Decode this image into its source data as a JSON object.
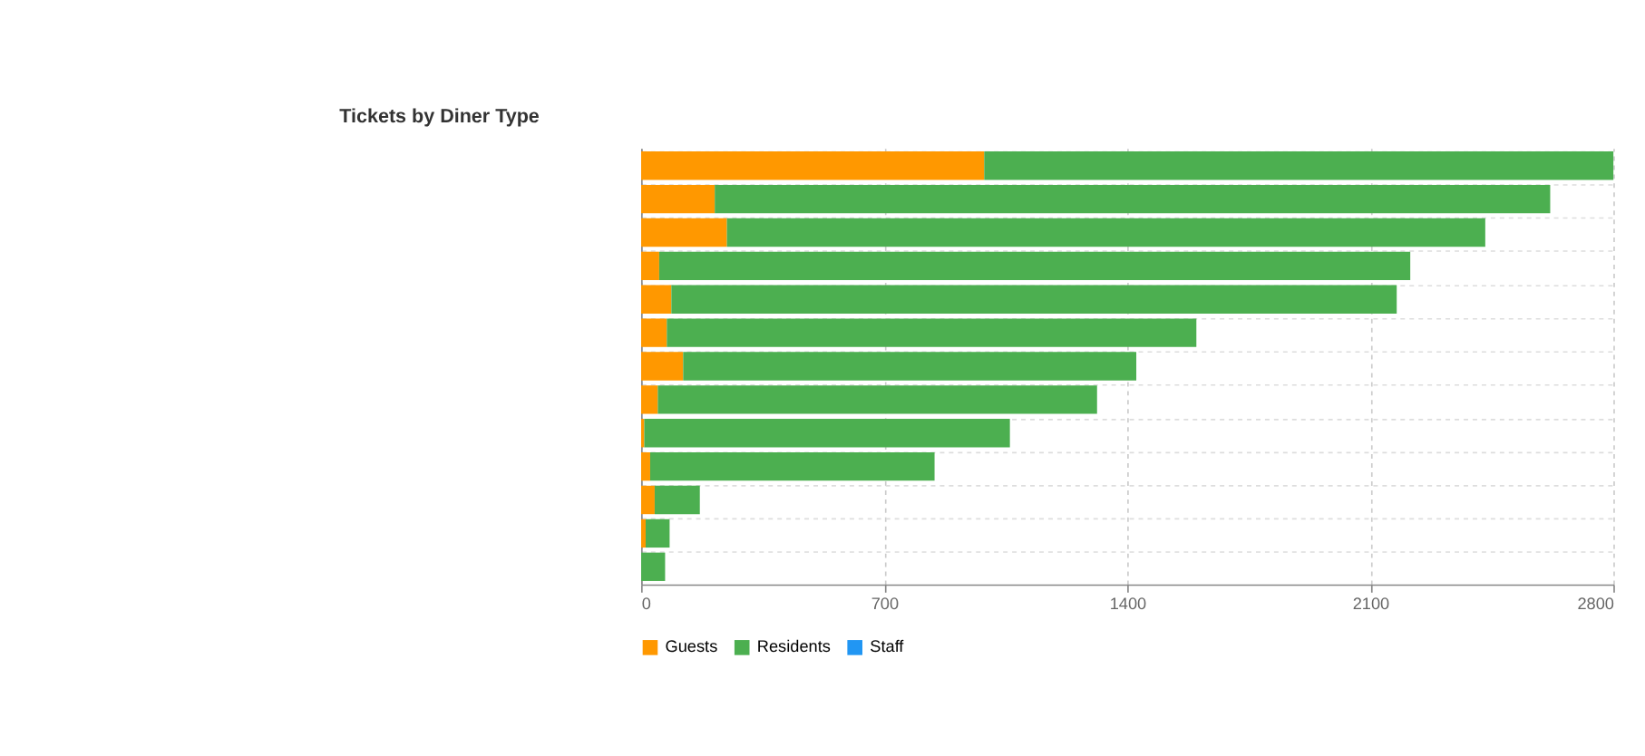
{
  "chart_data": {
    "type": "bar",
    "orientation": "horizontal",
    "stacked": true,
    "title": "Tickets by Diner Type",
    "categories": [
      null,
      null,
      null,
      null,
      null,
      null,
      null,
      null,
      null,
      null,
      null,
      null,
      null
    ],
    "series": [
      {
        "name": "Guests",
        "color": "#ff9800",
        "values": [
          988,
          212,
          247,
          52,
          87,
          74,
          121,
          48,
          9,
          26,
          39,
          13,
          0
        ]
      },
      {
        "name": "Residents",
        "color": "#4caf50",
        "values": [
          1812,
          2406,
          2184,
          2163,
          2089,
          1525,
          1305,
          1265,
          1053,
          819,
          130,
          69,
          69
        ]
      },
      {
        "name": "Staff",
        "color": "#2196f3",
        "values": [
          0,
          0,
          0,
          0,
          0,
          0,
          0,
          0,
          0,
          0,
          0,
          0,
          0
        ]
      }
    ],
    "xlim": [
      0,
      2800
    ],
    "xticks": [
      0,
      700,
      1400,
      2100,
      2800
    ],
    "grid": true,
    "legend": "bottom",
    "tick_labels": "x"
  }
}
